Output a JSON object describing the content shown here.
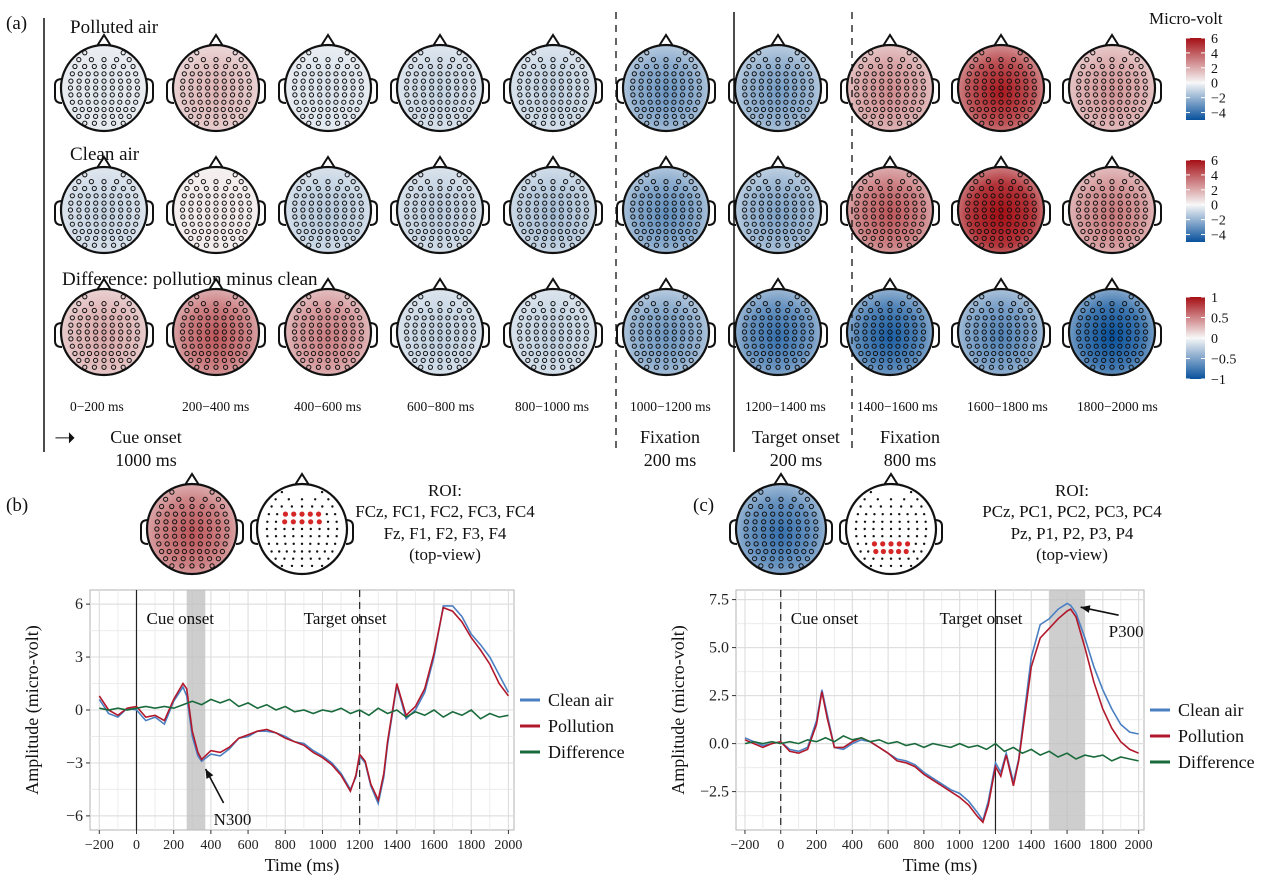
{
  "panel_a": {
    "label": "(a)",
    "rows": [
      {
        "title": "Polluted air",
        "tag": "polluted",
        "values": [
          -0.5,
          1.4,
          -0.6,
          -1.0,
          -1.1,
          -2.8,
          -2.6,
          2.2,
          4.6,
          2.0
        ]
      },
      {
        "title": "Clean air",
        "tag": "clean",
        "values": [
          -1.0,
          0.3,
          -1.3,
          -1.2,
          -1.6,
          -3.0,
          -2.4,
          3.3,
          5.4,
          2.6
        ]
      },
      {
        "title": "Difference: pollution minus clean",
        "tag": "difference",
        "values": [
          0.3,
          0.6,
          0.45,
          -0.2,
          -0.2,
          -0.5,
          -0.7,
          -0.8,
          -0.6,
          -0.9
        ]
      }
    ],
    "time_windows": [
      "0−200 ms",
      "200−400 ms",
      "400−600 ms",
      "600−800 ms",
      "800−1000 ms",
      "1000−1200 ms",
      "1200−1400 ms",
      "1400−1600 ms",
      "1600−1800 ms",
      "1800−2000 ms"
    ],
    "colorbar_title": "Micro-volt",
    "colorbars": [
      {
        "ticks": [
          "6",
          "4",
          "2",
          "0",
          "−2",
          "−4"
        ],
        "range": [
          -5,
          6
        ]
      },
      {
        "ticks": [
          "6",
          "4",
          "2",
          "0",
          "−2",
          "−4"
        ],
        "range": [
          -5,
          6
        ]
      },
      {
        "ticks": [
          "1",
          "0.5",
          "0",
          "−0.5",
          "−1"
        ],
        "range": [
          -1,
          1
        ]
      }
    ],
    "phases": [
      {
        "name": "Cue onset",
        "duration": "1000 ms",
        "arrow": "➝"
      },
      {
        "name": "Fixation",
        "duration": "200 ms"
      },
      {
        "name": "Target onset",
        "duration": "200 ms"
      },
      {
        "name": "Fixation",
        "duration": "800 ms"
      }
    ],
    "colors": {
      "positive": "#a50f15",
      "neutral": "#f7f7f7",
      "negative": "#08519c"
    }
  },
  "panel_b": {
    "label": "(b)",
    "roi_title": "ROI:",
    "roi_line1": "FCz, FC1, FC2, FC3, FC4",
    "roi_line2": "Fz, F1, F2, F3, F4",
    "roi_view": "(top-view)",
    "roi_map_value": 0.6
  },
  "panel_c": {
    "label": "(c)",
    "roi_title": "ROI:",
    "roi_line1": "PCz, PC1, PC2, PC3, PC4",
    "roi_line2": "Pz, P1, P2, P3, P4",
    "roi_view": "(top-view)",
    "roi_map_value": -0.7
  },
  "chart_data": [
    {
      "type": "line",
      "panel": "(b)",
      "xlabel": "Time (ms)",
      "ylabel": "Amplitude (micro-volt)",
      "xlim": [
        -250,
        2030
      ],
      "ylim": [
        -6.8,
        6.8
      ],
      "xticks": [
        "−200",
        "0",
        "200",
        "400",
        "600",
        "800",
        "1000",
        "1200",
        "1400",
        "1600",
        "1800",
        "2000"
      ],
      "yticks": [
        "6",
        "3",
        "0",
        "−3",
        "−6"
      ],
      "grid": true,
      "legend_position": "right",
      "annotations": [
        {
          "text": "Cue onset",
          "x": 0,
          "line": "solid"
        },
        {
          "text": "Target onset",
          "x": 1200,
          "line": "dashed"
        },
        {
          "text": "N300",
          "x": 350,
          "y": -3.0,
          "arrow": true
        }
      ],
      "shaded_window": [
        270,
        370
      ],
      "series": [
        {
          "name": "Clean air",
          "color": "#4a7fc1",
          "x": [
            -200,
            -150,
            -100,
            -50,
            0,
            50,
            100,
            150,
            200,
            250,
            270,
            300,
            330,
            350,
            400,
            450,
            500,
            550,
            600,
            650,
            700,
            750,
            800,
            850,
            900,
            950,
            1000,
            1050,
            1100,
            1150,
            1180,
            1200,
            1230,
            1260,
            1300,
            1330,
            1350,
            1400,
            1450,
            1500,
            1550,
            1600,
            1650,
            1700,
            1750,
            1800,
            1850,
            1900,
            1950,
            2000
          ],
          "y": [
            0.6,
            -0.2,
            -0.4,
            0.1,
            0.0,
            -0.6,
            -0.4,
            -0.8,
            0.5,
            1.3,
            0.8,
            -1.5,
            -2.6,
            -2.9,
            -2.5,
            -2.6,
            -2.2,
            -1.6,
            -1.5,
            -1.2,
            -1.2,
            -1.3,
            -1.5,
            -1.8,
            -1.9,
            -2.3,
            -2.6,
            -3.0,
            -3.6,
            -4.5,
            -3.8,
            -2.6,
            -3.0,
            -4.3,
            -5.3,
            -3.8,
            -2.0,
            1.4,
            -0.5,
            0.0,
            1.0,
            3.0,
            5.9,
            5.9,
            5.3,
            4.3,
            3.7,
            3.0,
            2.0,
            1.0
          ]
        },
        {
          "name": "Pollution",
          "color": "#b2182b",
          "x": [
            -200,
            -150,
            -100,
            -50,
            0,
            50,
            100,
            150,
            200,
            250,
            270,
            300,
            330,
            350,
            400,
            450,
            500,
            550,
            600,
            650,
            700,
            750,
            800,
            850,
            900,
            950,
            1000,
            1050,
            1100,
            1150,
            1180,
            1200,
            1230,
            1260,
            1300,
            1330,
            1350,
            1400,
            1450,
            1500,
            1550,
            1600,
            1650,
            1700,
            1750,
            1800,
            1850,
            1900,
            1950,
            2000
          ],
          "y": [
            0.8,
            0.0,
            -0.3,
            0.1,
            0.2,
            -0.4,
            -0.3,
            -0.6,
            0.6,
            1.5,
            1.2,
            -1.2,
            -2.4,
            -2.8,
            -2.3,
            -2.4,
            -2.1,
            -1.6,
            -1.4,
            -1.2,
            -1.1,
            -1.3,
            -1.6,
            -1.8,
            -2.0,
            -2.4,
            -2.7,
            -3.1,
            -3.7,
            -4.6,
            -3.7,
            -2.5,
            -2.9,
            -4.2,
            -5.1,
            -3.6,
            -1.8,
            1.5,
            -0.3,
            0.2,
            1.2,
            3.2,
            5.8,
            5.6,
            5.0,
            4.1,
            3.4,
            2.6,
            1.5,
            0.8
          ]
        },
        {
          "name": "Difference",
          "color": "#1a6b3c",
          "x": [
            -200,
            -150,
            -100,
            -50,
            0,
            50,
            100,
            150,
            200,
            250,
            300,
            350,
            400,
            450,
            500,
            550,
            600,
            650,
            700,
            750,
            800,
            850,
            900,
            950,
            1000,
            1050,
            1100,
            1150,
            1200,
            1250,
            1300,
            1350,
            1400,
            1450,
            1500,
            1550,
            1600,
            1650,
            1700,
            1750,
            1800,
            1850,
            1900,
            1950,
            2000
          ],
          "y": [
            0.1,
            0.0,
            0.1,
            0.0,
            0.1,
            0.2,
            0.1,
            0.2,
            0.1,
            0.3,
            0.5,
            0.3,
            0.6,
            0.4,
            0.6,
            0.2,
            0.4,
            0.1,
            0.3,
            0.0,
            0.2,
            -0.1,
            0.0,
            -0.2,
            0.0,
            -0.1,
            0.1,
            -0.2,
            0.0,
            -0.3,
            0.1,
            -0.2,
            0.0,
            -0.4,
            -0.1,
            -0.3,
            0.0,
            -0.4,
            -0.1,
            -0.3,
            0.0,
            -0.5,
            -0.2,
            -0.4,
            -0.3
          ]
        }
      ]
    },
    {
      "type": "line",
      "panel": "(c)",
      "xlabel": "Time (ms)",
      "ylabel": "Amplitude (micro-volt)",
      "xlim": [
        -250,
        2030
      ],
      "ylim": [
        -4.5,
        8.0
      ],
      "xticks": [
        "−200",
        "0",
        "200",
        "400",
        "600",
        "800",
        "1000",
        "1200",
        "1400",
        "1600",
        "1800",
        "2000"
      ],
      "yticks": [
        "7.5",
        "5.0",
        "2.5",
        "0.0",
        "−2.5"
      ],
      "grid": true,
      "legend_position": "right",
      "annotations": [
        {
          "text": "Cue onset",
          "x": 0,
          "line": "dashed"
        },
        {
          "text": "Target onset",
          "x": 1200,
          "line": "solid"
        },
        {
          "text": "P300",
          "x": 1620,
          "y": 7.0,
          "arrow": true
        }
      ],
      "shaded_window": [
        1500,
        1700
      ],
      "series": [
        {
          "name": "Clean air",
          "color": "#4a7fc1",
          "x": [
            -200,
            -150,
            -100,
            -50,
            0,
            50,
            100,
            150,
            200,
            230,
            260,
            300,
            350,
            400,
            450,
            500,
            550,
            600,
            650,
            700,
            750,
            800,
            850,
            900,
            950,
            1000,
            1050,
            1100,
            1130,
            1160,
            1200,
            1230,
            1260,
            1300,
            1330,
            1360,
            1400,
            1450,
            1500,
            1550,
            1600,
            1620,
            1650,
            1700,
            1750,
            1800,
            1850,
            1900,
            1950,
            2000
          ],
          "y": [
            0.3,
            0.1,
            -0.1,
            0.0,
            0.1,
            -0.3,
            -0.4,
            -0.2,
            1.2,
            2.8,
            1.5,
            -0.2,
            -0.3,
            0.0,
            0.2,
            0.1,
            -0.2,
            -0.5,
            -0.8,
            -0.9,
            -1.1,
            -1.5,
            -1.8,
            -2.1,
            -2.4,
            -2.6,
            -3.0,
            -3.6,
            -4.0,
            -3.0,
            -1.0,
            -1.5,
            -0.5,
            -2.0,
            -0.8,
            1.5,
            4.5,
            6.2,
            6.5,
            7.0,
            7.3,
            7.2,
            6.8,
            5.5,
            4.0,
            2.8,
            1.8,
            1.0,
            0.6,
            0.5
          ]
        },
        {
          "name": "Pollution",
          "color": "#b2182b",
          "x": [
            -200,
            -150,
            -100,
            -50,
            0,
            50,
            100,
            150,
            200,
            230,
            260,
            300,
            350,
            400,
            450,
            500,
            550,
            600,
            650,
            700,
            750,
            800,
            850,
            900,
            950,
            1000,
            1050,
            1100,
            1130,
            1160,
            1200,
            1230,
            1260,
            1300,
            1330,
            1360,
            1400,
            1450,
            1500,
            1550,
            1600,
            1620,
            1650,
            1700,
            1750,
            1800,
            1850,
            1900,
            1950,
            2000
          ],
          "y": [
            0.2,
            0.0,
            -0.2,
            0.0,
            0.1,
            -0.4,
            -0.5,
            -0.3,
            1.0,
            2.7,
            1.3,
            -0.2,
            -0.2,
            0.1,
            0.3,
            0.1,
            -0.2,
            -0.5,
            -0.9,
            -1.0,
            -1.2,
            -1.6,
            -1.9,
            -2.2,
            -2.5,
            -2.8,
            -3.2,
            -3.8,
            -4.1,
            -3.2,
            -1.2,
            -1.7,
            -0.6,
            -2.2,
            -0.9,
            1.2,
            4.0,
            5.5,
            6.0,
            6.5,
            6.9,
            7.0,
            6.6,
            5.0,
            3.2,
            1.8,
            0.8,
            0.1,
            -0.3,
            -0.5
          ]
        },
        {
          "name": "Difference",
          "color": "#1a6b3c",
          "x": [
            -200,
            -150,
            -100,
            -50,
            0,
            50,
            100,
            150,
            200,
            250,
            300,
            350,
            400,
            450,
            500,
            550,
            600,
            650,
            700,
            750,
            800,
            850,
            900,
            950,
            1000,
            1050,
            1100,
            1150,
            1200,
            1250,
            1300,
            1350,
            1400,
            1450,
            1500,
            1550,
            1600,
            1650,
            1700,
            1750,
            1800,
            1850,
            1900,
            1950,
            2000
          ],
          "y": [
            0.0,
            0.1,
            0.0,
            0.1,
            0.0,
            0.1,
            0.0,
            0.2,
            0.1,
            0.3,
            0.1,
            0.4,
            0.2,
            0.3,
            0.1,
            0.2,
            0.0,
            0.1,
            -0.1,
            0.0,
            -0.2,
            0.0,
            -0.1,
            -0.2,
            0.0,
            -0.2,
            -0.1,
            -0.3,
            0.0,
            -0.4,
            -0.2,
            -0.5,
            -0.3,
            -0.6,
            -0.4,
            -0.7,
            -0.5,
            -0.8,
            -0.6,
            -0.7,
            -0.6,
            -0.9,
            -0.7,
            -0.8,
            -0.9
          ]
        }
      ]
    }
  ]
}
